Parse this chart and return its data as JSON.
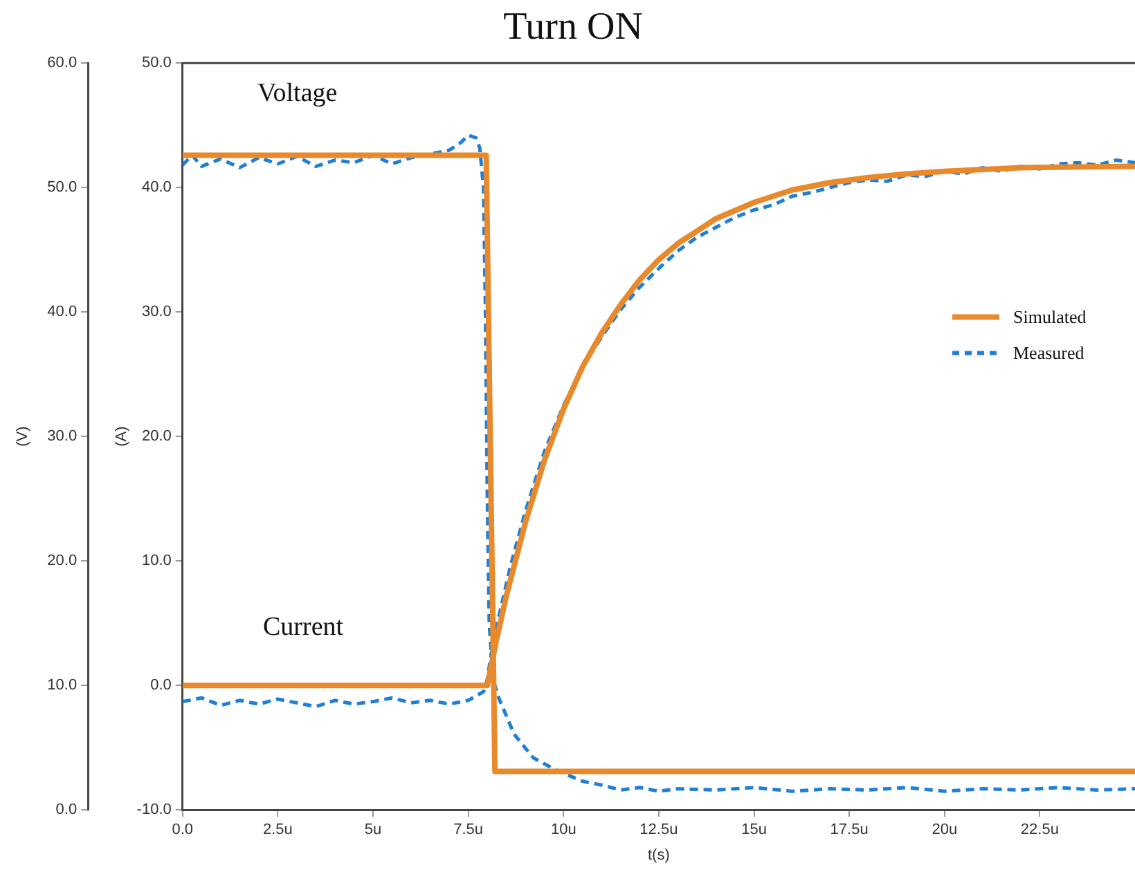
{
  "chart_data": {
    "type": "line",
    "title": "Turn ON",
    "xlabel": "t(s)",
    "ylabel": "(A)",
    "y2label": "(V)",
    "xlim": [
      0,
      25
    ],
    "xticks": [
      {
        "value": 0,
        "label": "0.0"
      },
      {
        "value": 2.5,
        "label": "2.5u"
      },
      {
        "value": 5,
        "label": "5u"
      },
      {
        "value": 7.5,
        "label": "7.5u"
      },
      {
        "value": 10,
        "label": "10u"
      },
      {
        "value": 12.5,
        "label": "12.5u"
      },
      {
        "value": 15,
        "label": "15u"
      },
      {
        "value": 17.5,
        "label": "17.5u"
      },
      {
        "value": 20,
        "label": "20u"
      },
      {
        "value": 22.5,
        "label": "22.5u"
      }
    ],
    "ylim": [
      -10,
      50
    ],
    "yticks": [
      {
        "value": -10,
        "label": "-10.0"
      },
      {
        "value": 0,
        "label": "0.0"
      },
      {
        "value": 10,
        "label": "10.0"
      },
      {
        "value": 20,
        "label": "20.0"
      },
      {
        "value": 30,
        "label": "30.0"
      },
      {
        "value": 40,
        "label": "40.0"
      },
      {
        "value": 50,
        "label": "50.0"
      }
    ],
    "y2lim": [
      0,
      60
    ],
    "y2ticks": [
      {
        "value": 0,
        "label": "0.0"
      },
      {
        "value": 10,
        "label": "10.0"
      },
      {
        "value": 20,
        "label": "20.0"
      },
      {
        "value": 30,
        "label": "30.0"
      },
      {
        "value": 40,
        "label": "40.0"
      },
      {
        "value": 50,
        "label": "50.0"
      },
      {
        "value": 60,
        "label": "60.0"
      }
    ],
    "grid": false,
    "legend": "right",
    "marker": "none",
    "annotations": [
      "Voltage",
      "Current"
    ],
    "series": [
      {
        "name": "Simulated",
        "color": "#e8892b",
        "line_style": "solid",
        "axis": "y2",
        "x": [
          0,
          7.97,
          8.2,
          25
        ],
        "values": [
          52.6,
          52.6,
          3.1,
          3.1
        ]
      },
      {
        "name": "Measured",
        "color": "#1f7fd6",
        "line_style": "dashed",
        "axis": "y2",
        "x": [
          0,
          0.25,
          0.5,
          1,
          1.5,
          2,
          2.5,
          3,
          3.5,
          4,
          4.5,
          5,
          5.5,
          6,
          6.5,
          7,
          7.3,
          7.5,
          7.7,
          7.8,
          7.9,
          7.95,
          8.0,
          8.05,
          8.15,
          8.3,
          8.7,
          9.2,
          9.8,
          10.5,
          11,
          11.5,
          12,
          12.5,
          13,
          14,
          15,
          16,
          17,
          18,
          19,
          20,
          21,
          22,
          23,
          24,
          25
        ],
        "values": [
          51.8,
          52.6,
          51.7,
          52.3,
          51.6,
          52.4,
          51.9,
          52.5,
          51.7,
          52.2,
          52.0,
          52.6,
          51.9,
          52.4,
          52.7,
          53.0,
          53.6,
          54.2,
          54.0,
          53.2,
          50,
          40,
          25,
          15,
          10.5,
          9.0,
          6.1,
          4.2,
          3.2,
          2.3,
          2.0,
          1.6,
          1.8,
          1.5,
          1.7,
          1.6,
          1.8,
          1.5,
          1.7,
          1.6,
          1.8,
          1.5,
          1.7,
          1.6,
          1.8,
          1.6,
          1.7
        ]
      },
      {
        "color": "#e8892b",
        "line_style": "solid",
        "x": [
          0,
          8.0,
          8.25,
          8.5,
          9,
          9.5,
          10,
          10.5,
          11,
          11.5,
          12,
          12.5,
          13,
          14,
          15,
          16,
          17,
          18,
          19,
          20,
          22,
          25
        ],
        "values": [
          0,
          0,
          3.8,
          7.2,
          13.1,
          18.1,
          22.2,
          25.6,
          28.3,
          30.6,
          32.6,
          34.2,
          35.5,
          37.5,
          38.8,
          39.8,
          40.4,
          40.8,
          41.1,
          41.3,
          41.6,
          41.7
        ]
      },
      {
        "color": "#1f7fd6",
        "line_style": "dashed",
        "x": [
          0,
          0.5,
          1,
          1.5,
          2,
          2.5,
          3,
          3.5,
          4,
          4.5,
          5,
          5.5,
          6,
          6.5,
          7,
          7.5,
          7.9,
          8.0,
          8.1,
          8.3,
          8.6,
          9,
          9.5,
          10,
          10.5,
          11,
          11.5,
          12,
          12.5,
          13,
          13.5,
          14,
          14.5,
          15,
          15.5,
          16,
          16.5,
          17,
          17.5,
          18,
          18.5,
          19,
          19.5,
          20,
          20.5,
          21,
          21.5,
          22,
          22.5,
          23,
          23.5,
          24,
          24.5,
          25
        ],
        "values": [
          -1.3,
          -1.0,
          -1.6,
          -1.2,
          -1.5,
          -1.1,
          -1.4,
          -1.7,
          -1.2,
          -1.5,
          -1.3,
          -1.0,
          -1.4,
          -1.2,
          -1.5,
          -1.2,
          -0.5,
          0.5,
          2.5,
          5.5,
          9.5,
          14.0,
          18.8,
          22.5,
          25.6,
          28.0,
          30.2,
          32.0,
          33.5,
          34.9,
          36.0,
          36.8,
          37.6,
          38.2,
          38.6,
          39.3,
          39.6,
          40.0,
          40.4,
          40.6,
          40.5,
          41.0,
          40.9,
          41.3,
          41.1,
          41.6,
          41.3,
          41.7,
          41.5,
          41.9,
          42.0,
          41.8,
          42.2,
          42.0
        ]
      }
    ]
  }
}
